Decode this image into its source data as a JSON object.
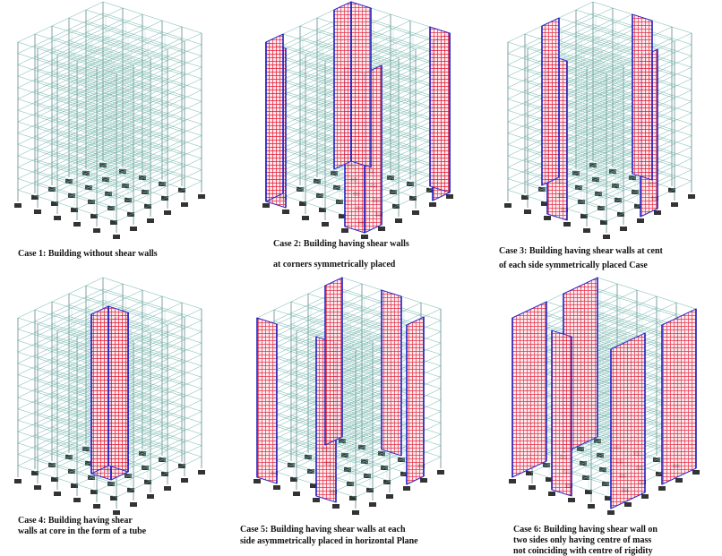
{
  "panels": [
    {
      "caption_lines": [
        "Case 1: Building without shear walls"
      ]
    },
    {
      "caption_lines": [
        "Case 2: Building having shear walls",
        "at corners symmetrically placed"
      ]
    },
    {
      "caption_lines": [
        "Case 3: Building having shear walls at cent",
        "of each side symmetrically placed Case"
      ]
    },
    {
      "caption_lines": [
        "Case 4: Building having shear",
        "walls at core in the form of a tube"
      ]
    },
    {
      "caption_lines": [
        "Case 5: Building having shear walls at each",
        "side asymmetrically placed in horizontal Plane"
      ]
    },
    {
      "caption_lines": [
        "Case 6: Building having shear wall on",
        "two sides only having centre of mass",
        "not coinciding with centre of rigidity"
      ]
    }
  ]
}
